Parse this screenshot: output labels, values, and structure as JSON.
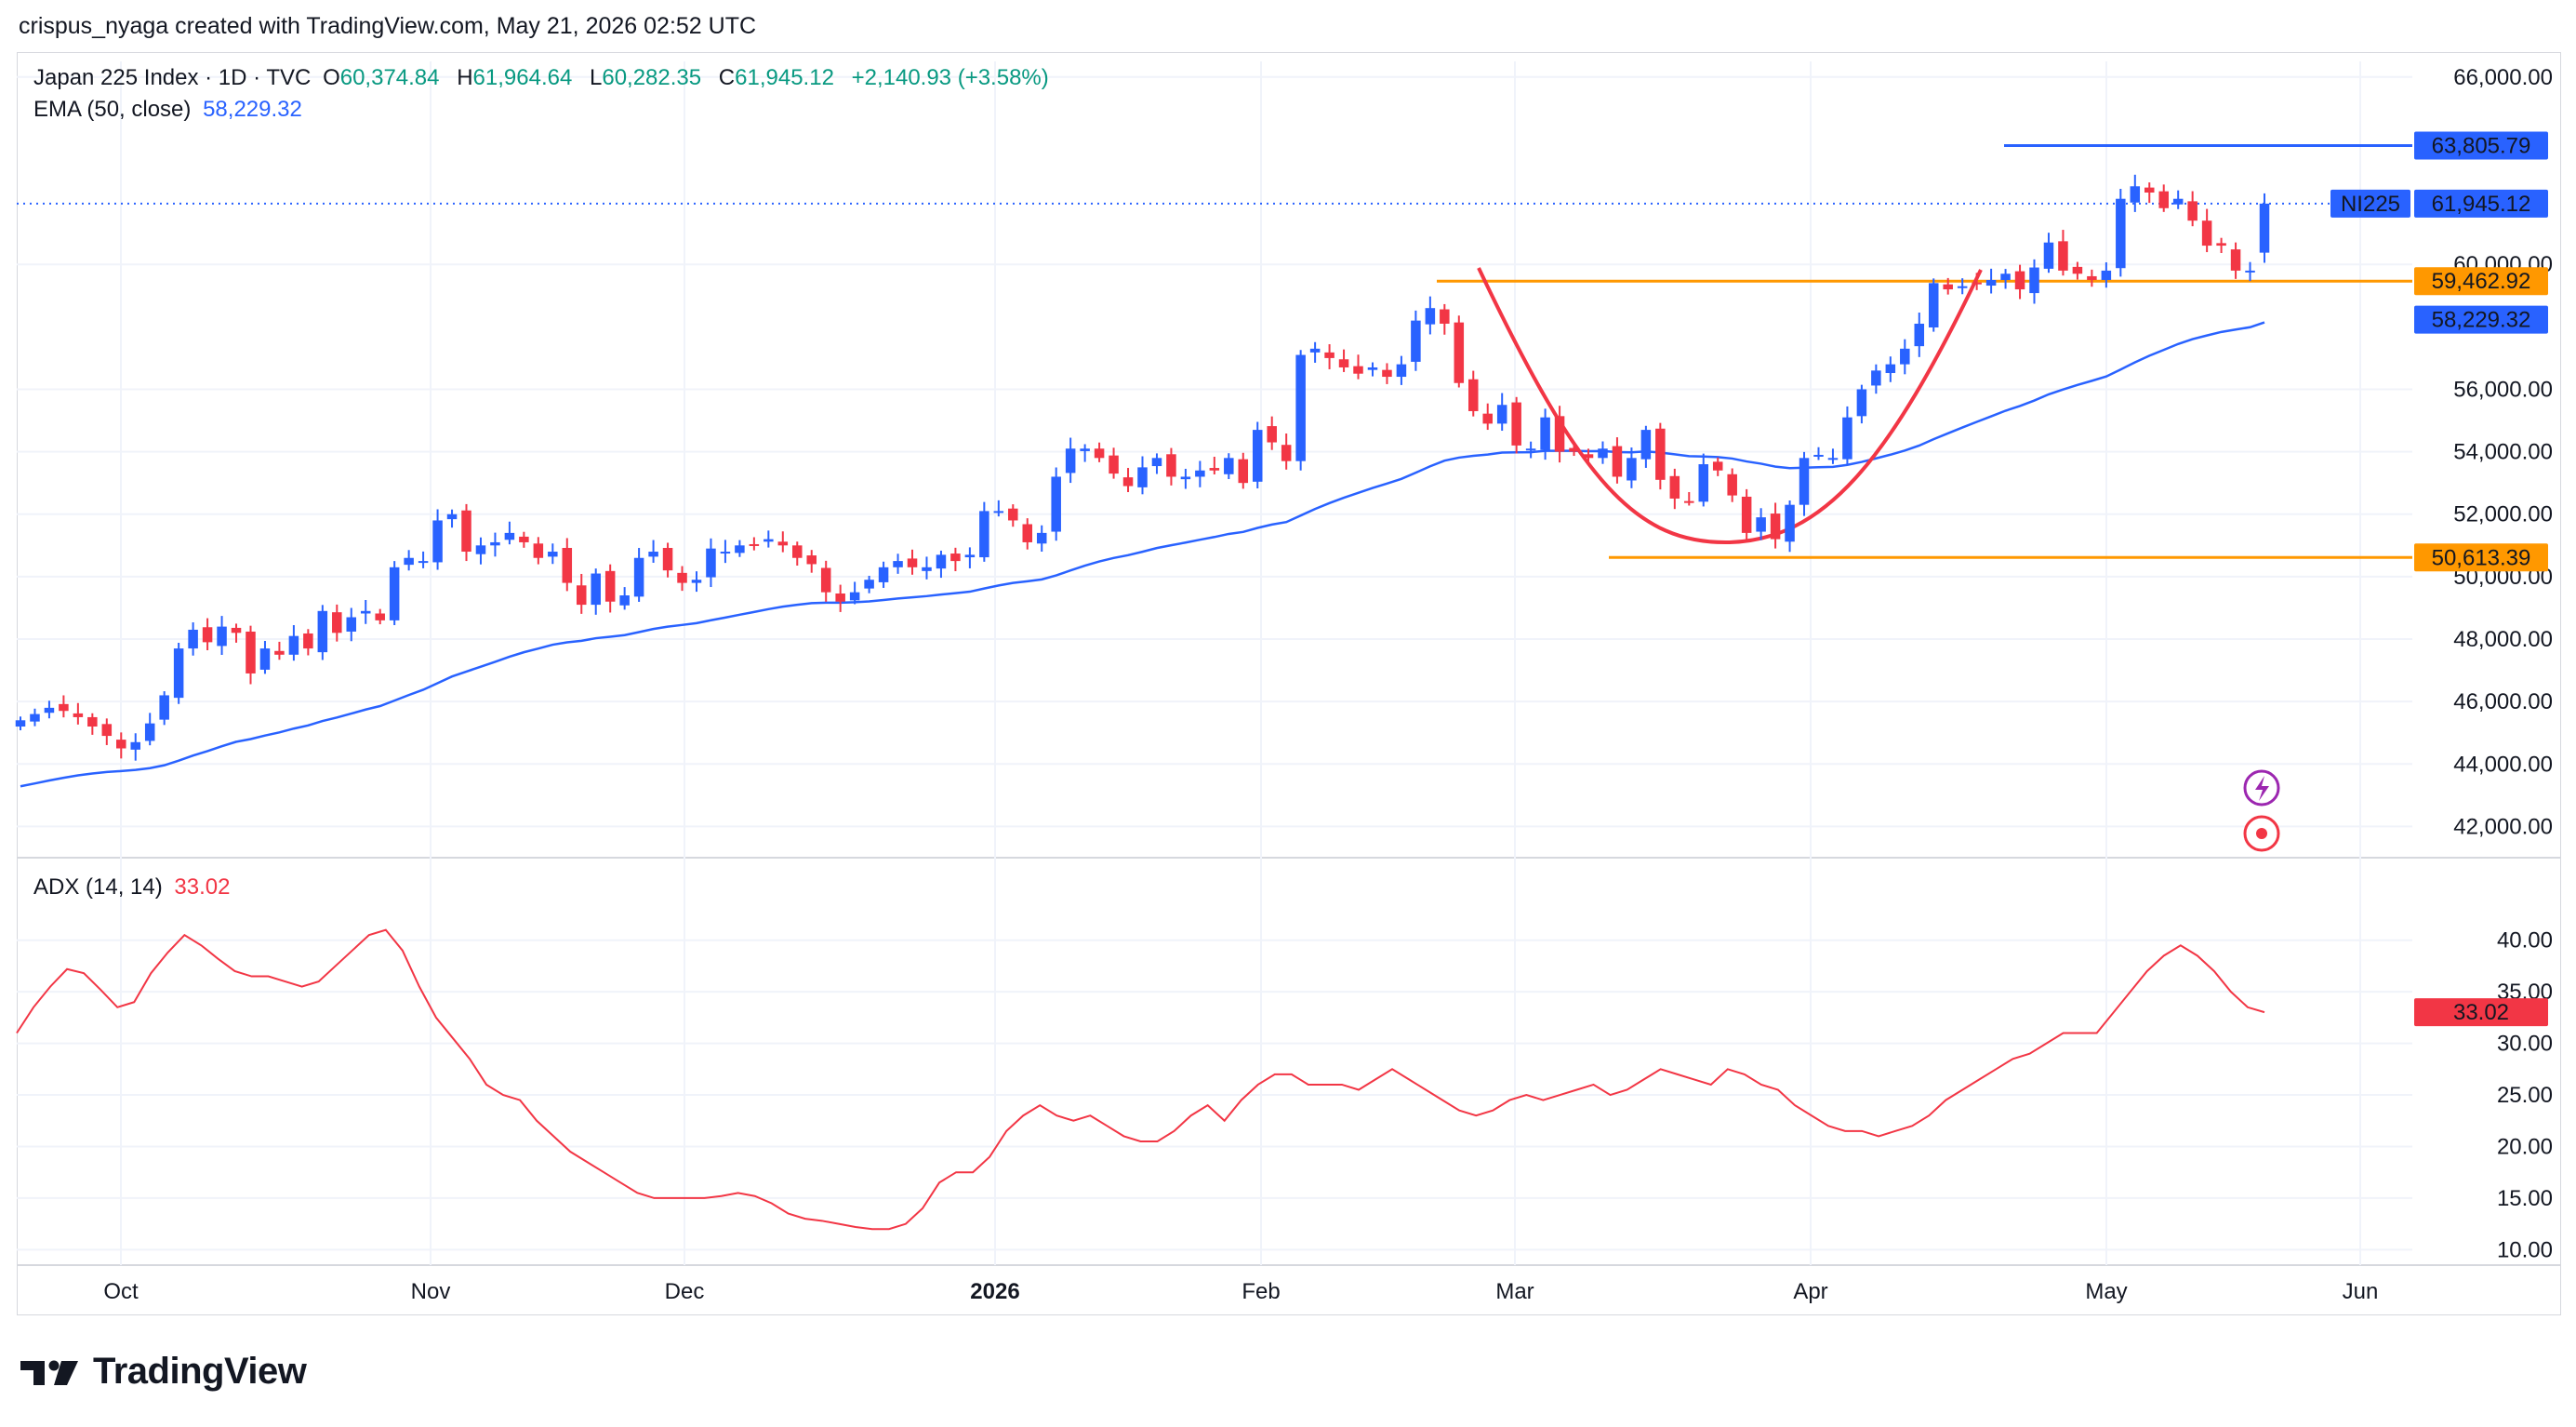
{
  "header": {
    "credit": "crispus_nyaga created with TradingView.com, May 21, 2026 02:52 UTC"
  },
  "legend": {
    "symbol": "Japan 225 Index · 1D · TVC",
    "o_label": "O",
    "o": "60,374.84",
    "h_label": "H",
    "h": "61,964.64",
    "l_label": "L",
    "l": "60,282.35",
    "c_label": "C",
    "c": "61,945.12",
    "change": "+2,140.93 (+3.58%)",
    "ema_label": "EMA (50, close)",
    "ema_value": "58,229.32",
    "adx_label": "ADX (14, 14)",
    "adx_value": "33.02"
  },
  "brand": {
    "name": "TradingView"
  },
  "colors": {
    "up": "#089981",
    "up_candle": "#2962ff",
    "down_candle": "#f23645",
    "ema": "#2962ff",
    "orange": "#ff9800",
    "blue_line": "#2962ff",
    "adx": "#f23645",
    "cup": "#f23645"
  },
  "chart_data": [
    {
      "type": "candlestick",
      "title": "Japan 225 Index · 1D · TVC",
      "x_labels": [
        "Oct",
        "Nov",
        "Dec",
        "2026",
        "Feb",
        "Mar",
        "Apr",
        "May",
        "Jun"
      ],
      "ylim": [
        41000,
        66500
      ],
      "y_ticks": [
        "66,000.00",
        "60,000.00",
        "56,000.00",
        "54,000.00",
        "52,000.00",
        "50,000.00",
        "48,000.00",
        "46,000.00",
        "44,000.00",
        "42,000.00"
      ],
      "closes": [
        45400,
        45600,
        45800,
        45700,
        45500,
        45200,
        44900,
        44500,
        44700,
        45300,
        46200,
        47700,
        48300,
        47900,
        48400,
        48200,
        46900,
        47700,
        47500,
        48100,
        47700,
        48900,
        48200,
        48700,
        48900,
        48600,
        50300,
        50600,
        50500,
        51800,
        52000,
        50800,
        51000,
        51100,
        51400,
        51100,
        50600,
        50800,
        49800,
        49100,
        50100,
        49200,
        49400,
        50600,
        50800,
        50200,
        49800,
        49900,
        50900,
        50800,
        51000,
        51000,
        51200,
        51000,
        50600,
        50400,
        49500,
        49200,
        49500,
        49900,
        50300,
        50500,
        50300,
        50300,
        50700,
        50500,
        50700,
        52100,
        52100,
        51800,
        51100,
        51400,
        53200,
        54100,
        54100,
        53800,
        53300,
        52900,
        53500,
        53800,
        53200,
        53200,
        53400,
        53400,
        53800,
        53000,
        54700,
        54300,
        53700,
        57100,
        57300,
        57000,
        56700,
        56500,
        56700,
        56400,
        56800,
        58200,
        58600,
        58100,
        56200,
        55300,
        54900,
        55500,
        54200,
        54100,
        55100,
        54000,
        54000,
        53800,
        54100,
        53200,
        53800,
        54700,
        53100,
        52500,
        52400,
        53600,
        53400,
        52600,
        51400,
        51900,
        51200,
        52300,
        53800,
        53900,
        53800,
        55100,
        56000,
        56600,
        56800,
        57300,
        58100,
        59400,
        59200,
        59300,
        59400,
        59500,
        59700,
        59200,
        59900,
        60700,
        59800,
        59700,
        59500,
        59800,
        62100,
        62500,
        62300,
        61800,
        62100,
        61400,
        60600,
        60600,
        59800,
        59800,
        61945
      ]
    },
    {
      "type": "line",
      "title": "ADX (14, 14)",
      "ylim": [
        8.5,
        42.5
      ],
      "y_ticks": [
        "40.00",
        "35.00",
        "30.00",
        "25.00",
        "20.00",
        "15.00",
        "10.00"
      ],
      "values": [
        31,
        33.5,
        35.5,
        37.2,
        36.8,
        35.2,
        33.5,
        34,
        36.8,
        38.8,
        40.5,
        39.5,
        38.2,
        37,
        36.5,
        36.5,
        36,
        35.5,
        36,
        37.5,
        39,
        40.5,
        41,
        39,
        35.5,
        32.5,
        30.5,
        28.5,
        26,
        25,
        24.5,
        22.5,
        21,
        19.5,
        18.5,
        17.5,
        16.5,
        15.5,
        15,
        15,
        15,
        15,
        15.2,
        15.5,
        15.2,
        14.5,
        13.5,
        13,
        12.8,
        12.5,
        12.2,
        12,
        12,
        12.5,
        14,
        16.5,
        17.5,
        17.5,
        19,
        21.5,
        23,
        24,
        23,
        22.5,
        23,
        22,
        21,
        20.5,
        20.5,
        21.5,
        23,
        24,
        22.5,
        24.5,
        26,
        27,
        27,
        26,
        26,
        26,
        25.5,
        26.5,
        27.5,
        26.5,
        25.5,
        24.5,
        23.5,
        23,
        23.5,
        24.5,
        25,
        24.5,
        25,
        25.5,
        26,
        25,
        25.5,
        26.5,
        27.5,
        27,
        26.5,
        26,
        27.5,
        27,
        26,
        25.5,
        24,
        23,
        22,
        21.5,
        21.5,
        21,
        21.5,
        22,
        23,
        24.5,
        25.5,
        26.5,
        27.5,
        28.5,
        29,
        30,
        31,
        31,
        31,
        33,
        35,
        37,
        38.5,
        39.5,
        38.5,
        37,
        35,
        33.5,
        33.02
      ],
      "last_label": "33.02"
    }
  ],
  "annotations": {
    "resistance_label": "63,805.79",
    "last_price_tag": "NI225",
    "last_price_label": "61,945.12",
    "support_upper_label": "59,462.92",
    "ema_label": "58,229.32",
    "support_lower_label": "50,613.39",
    "cup_pattern": "cup"
  }
}
